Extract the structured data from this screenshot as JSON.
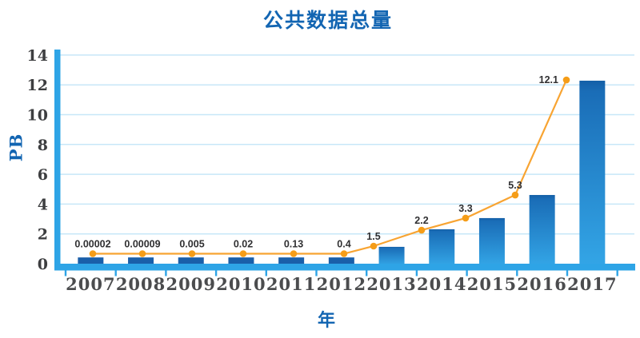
{
  "page": {
    "background": "#ffffff"
  },
  "colors": {
    "title": "#1265b2",
    "axis": "#2ea4e6",
    "grid": "#c7e7f8",
    "bar_gradient_top": "#145fa7",
    "bar_gradient_mid": "#1a6db7",
    "bar_gradient_bottom": "#33a5e6",
    "bar_small_solid": "#1a5fa9",
    "line": "#f8a432",
    "marker": "#f59d18",
    "ytick_label": "#3d3e40",
    "xtick_label": "#4b4c4e",
    "data_label": "#303032"
  },
  "chart_data": {
    "type": "bar+line",
    "title": "公共数据总量",
    "xlabel": "年",
    "ylabel": "PB",
    "categories": [
      "2007",
      "2008",
      "2009",
      "2010",
      "2011",
      "2012",
      "2013",
      "2014",
      "2015",
      "2016",
      "2017"
    ],
    "values": [
      2e-05,
      9e-05,
      0.005,
      0.02,
      0.13,
      0.4,
      1.5,
      2.2,
      3.3,
      5.3,
      12.1
    ],
    "point_labels": [
      "0.00002",
      "0.00009",
      "0.005",
      "0.02",
      "0.13",
      "0.4",
      "1.5",
      "2.2",
      "3.3",
      "5.3",
      "12.1"
    ],
    "series_note": "single series shown as bars with an orange line+markers labeled with the values",
    "ylim": [
      0,
      14
    ],
    "ytick_step": 2,
    "grid": true,
    "legend": "none",
    "render_hints": {
      "bar_top_values": [
        0.42,
        0.42,
        0.42,
        0.42,
        0.42,
        0.42,
        1.13,
        2.31,
        3.06,
        4.61,
        12.28
      ],
      "line_values": [
        0.67,
        0.67,
        0.67,
        0.67,
        0.67,
        0.67,
        1.18,
        2.25,
        3.06,
        4.61,
        12.33
      ],
      "line_x": [
        116,
        178,
        240,
        304,
        367,
        430,
        467,
        527,
        582,
        644,
        708
      ],
      "last_label_position": "left-of-marker"
    }
  }
}
